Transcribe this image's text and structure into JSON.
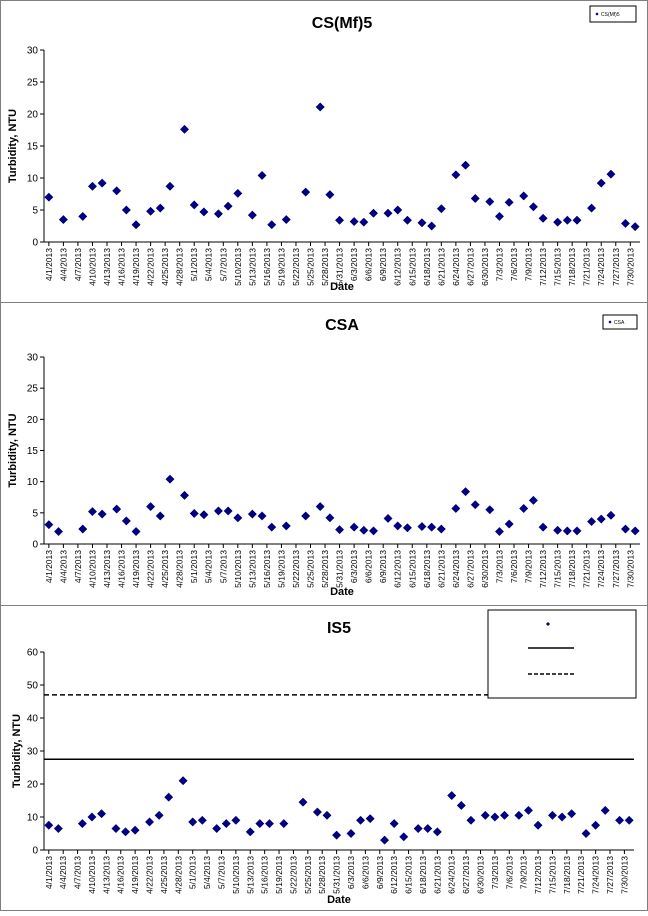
{
  "dates": [
    "4/1/2013",
    "4/4/2013",
    "4/7/2013",
    "4/10/2013",
    "4/13/2013",
    "4/16/2013",
    "4/19/2013",
    "4/22/2013",
    "4/25/2013",
    "4/28/2013",
    "5/1/2013",
    "5/4/2013",
    "5/7/2013",
    "5/10/2013",
    "5/13/2013",
    "5/16/2013",
    "5/19/2013",
    "5/22/2013",
    "5/25/2013",
    "5/28/2013",
    "5/31/2013",
    "6/3/2013",
    "6/6/2013",
    "6/9/2013",
    "6/12/2013",
    "6/15/2013",
    "6/18/2013",
    "6/21/2013",
    "6/24/2013",
    "6/27/2013",
    "6/30/2013",
    "7/3/2013",
    "7/6/2013",
    "7/9/2013",
    "7/12/2013",
    "7/15/2013",
    "7/18/2013",
    "7/21/2013",
    "7/24/2013",
    "7/27/2013",
    "7/30/2013"
  ],
  "colors": {
    "marker": "#000080",
    "line": "#000000",
    "border": "#808080"
  },
  "chart_data": [
    {
      "type": "scatter",
      "title": "CS(Mf)5",
      "xlabel": "Date",
      "ylabel": "Turbidity, NTU",
      "ylim": [
        0,
        30
      ],
      "yticks": [
        0,
        5,
        10,
        15,
        20,
        25,
        30
      ],
      "xlim": [
        "3/31/2013",
        "8/1/2013"
      ],
      "grid": false,
      "legend_position": "top-right",
      "series": [
        {
          "name": "CS(Mf)5",
          "x": [
            "4/1/2013",
            "4/4/2013",
            "4/8/2013",
            "4/10/2013",
            "4/12/2013",
            "4/15/2013",
            "4/17/2013",
            "4/19/2013",
            "4/22/2013",
            "4/24/2013",
            "4/26/2013",
            "4/29/2013",
            "5/1/2013",
            "5/3/2013",
            "5/6/2013",
            "5/8/2013",
            "5/10/2013",
            "5/13/2013",
            "5/15/2013",
            "5/17/2013",
            "5/20/2013",
            "5/24/2013",
            "5/27/2013",
            "5/29/2013",
            "5/31/2013",
            "6/3/2013",
            "6/5/2013",
            "6/7/2013",
            "6/10/2013",
            "6/12/2013",
            "6/14/2013",
            "6/17/2013",
            "6/19/2013",
            "6/21/2013",
            "6/24/2013",
            "6/26/2013",
            "6/28/2013",
            "7/1/2013",
            "7/3/2013",
            "7/5/2013",
            "7/8/2013",
            "7/10/2013",
            "7/12/2013",
            "7/15/2013",
            "7/17/2013",
            "7/19/2013",
            "7/22/2013",
            "7/24/2013",
            "7/26/2013",
            "7/29/2013",
            "7/31/2013"
          ],
          "y": [
            7.0,
            3.5,
            4.0,
            8.7,
            9.2,
            8.0,
            5.0,
            2.7,
            4.8,
            5.3,
            8.7,
            17.6,
            5.8,
            4.7,
            4.4,
            5.6,
            7.6,
            4.2,
            10.4,
            2.7,
            3.5,
            7.8,
            21.1,
            7.4,
            3.4,
            3.2,
            3.1,
            4.5,
            4.5,
            5.0,
            3.4,
            3.0,
            2.5,
            5.2,
            10.5,
            12.0,
            6.8,
            6.3,
            4.0,
            6.2,
            7.2,
            5.5,
            3.7,
            3.1,
            3.4,
            3.4,
            5.3,
            9.2,
            10.6,
            2.9,
            2.4
          ]
        }
      ]
    },
    {
      "type": "scatter",
      "title": "CSA",
      "xlabel": "Date",
      "ylabel": "Turbidity, NTU",
      "ylim": [
        0,
        30
      ],
      "yticks": [
        0,
        5,
        10,
        15,
        20,
        25,
        30
      ],
      "xlim": [
        "3/31/2013",
        "8/1/2013"
      ],
      "grid": false,
      "legend_position": "top-right",
      "series": [
        {
          "name": "CSA",
          "x": [
            "4/1/2013",
            "4/3/2013",
            "4/8/2013",
            "4/10/2013",
            "4/12/2013",
            "4/15/2013",
            "4/17/2013",
            "4/19/2013",
            "4/22/2013",
            "4/24/2013",
            "4/26/2013",
            "4/29/2013",
            "5/1/2013",
            "5/3/2013",
            "5/6/2013",
            "5/8/2013",
            "5/10/2013",
            "5/13/2013",
            "5/15/2013",
            "5/17/2013",
            "5/20/2013",
            "5/24/2013",
            "5/27/2013",
            "5/29/2013",
            "5/31/2013",
            "6/3/2013",
            "6/5/2013",
            "6/7/2013",
            "6/10/2013",
            "6/12/2013",
            "6/14/2013",
            "6/17/2013",
            "6/19/2013",
            "6/21/2013",
            "6/24/2013",
            "6/26/2013",
            "6/28/2013",
            "7/1/2013",
            "7/3/2013",
            "7/5/2013",
            "7/8/2013",
            "7/10/2013",
            "7/12/2013",
            "7/15/2013",
            "7/17/2013",
            "7/19/2013",
            "7/22/2013",
            "7/24/2013",
            "7/26/2013",
            "7/29/2013",
            "7/31/2013"
          ],
          "y": [
            3.1,
            2.0,
            2.4,
            5.2,
            4.8,
            5.6,
            3.7,
            2.0,
            6.0,
            4.5,
            10.4,
            7.8,
            4.9,
            4.7,
            5.3,
            5.3,
            4.2,
            4.8,
            4.5,
            2.7,
            2.9,
            4.5,
            6.0,
            4.2,
            2.3,
            2.7,
            2.2,
            2.1,
            4.1,
            2.9,
            2.6,
            2.8,
            2.7,
            2.4,
            5.7,
            8.4,
            6.3,
            5.5,
            2.0,
            3.2,
            5.7,
            7.0,
            2.7,
            2.2,
            2.1,
            2.1,
            3.6,
            4.0,
            4.6,
            2.4,
            2.1
          ]
        }
      ]
    },
    {
      "type": "scatter",
      "title": "IS5",
      "xlabel": "Date",
      "ylabel": "Turbidity, NTU",
      "ylim": [
        0,
        60
      ],
      "yticks": [
        0,
        10,
        20,
        30,
        40,
        50,
        60
      ],
      "xlim": [
        "3/31/2013",
        "8/1/2013"
      ],
      "grid": false,
      "legend_position": "top-right",
      "series": [
        {
          "name": "",
          "x": [
            "4/1/2013",
            "4/3/2013",
            "4/8/2013",
            "4/10/2013",
            "4/12/2013",
            "4/15/2013",
            "4/17/2013",
            "4/19/2013",
            "4/22/2013",
            "4/24/2013",
            "4/26/2013",
            "4/29/2013",
            "5/1/2013",
            "5/3/2013",
            "5/6/2013",
            "5/8/2013",
            "5/10/2013",
            "5/13/2013",
            "5/15/2013",
            "5/17/2013",
            "5/20/2013",
            "5/24/2013",
            "5/27/2013",
            "5/29/2013",
            "5/31/2013",
            "6/3/2013",
            "6/5/2013",
            "6/7/2013",
            "6/10/2013",
            "6/12/2013",
            "6/14/2013",
            "6/17/2013",
            "6/19/2013",
            "6/21/2013",
            "6/24/2013",
            "6/26/2013",
            "6/28/2013",
            "7/1/2013",
            "7/3/2013",
            "7/5/2013",
            "7/8/2013",
            "7/10/2013",
            "7/12/2013",
            "7/15/2013",
            "7/17/2013",
            "7/19/2013",
            "7/22/2013",
            "7/24/2013",
            "7/26/2013",
            "7/29/2013",
            "7/31/2013"
          ],
          "y": [
            7.5,
            6.5,
            8.0,
            10.0,
            11.0,
            6.5,
            5.5,
            6.0,
            8.5,
            10.5,
            16.0,
            21.0,
            8.5,
            9.0,
            6.5,
            8.0,
            9.0,
            5.5,
            8.0,
            8.0,
            8.0,
            14.5,
            11.5,
            10.5,
            4.5,
            5.0,
            9.0,
            9.5,
            3.0,
            8.0,
            4.0,
            6.5,
            6.5,
            5.5,
            16.5,
            13.5,
            9.0,
            10.5,
            10.0,
            10.5,
            10.5,
            12.0,
            7.5,
            10.5,
            10.0,
            11.0,
            5.0,
            7.5,
            12.0,
            9.0,
            9.0
          ]
        }
      ],
      "reference_lines": [
        {
          "name": "",
          "y": 27.5,
          "style": "solid"
        },
        {
          "name": "",
          "y": 47.0,
          "style": "dashed"
        }
      ]
    }
  ]
}
